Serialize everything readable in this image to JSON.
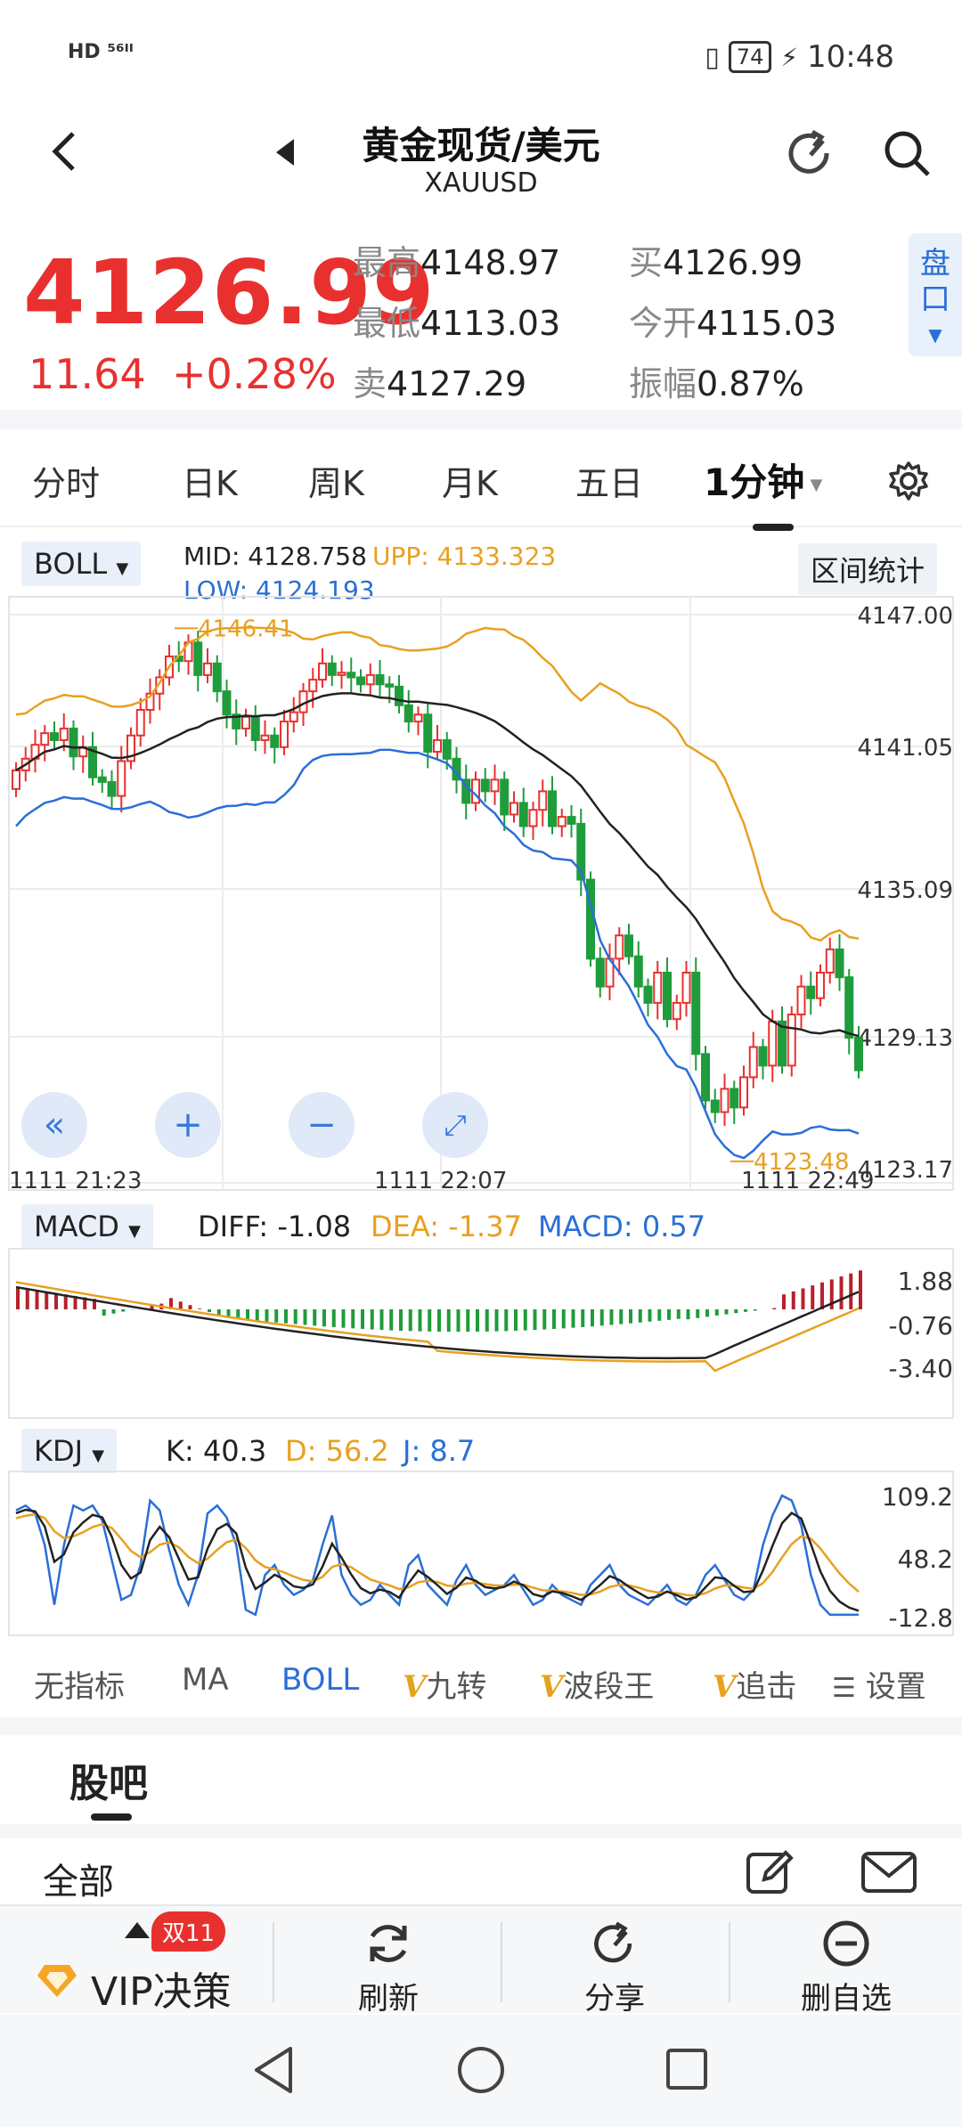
{
  "status_bar": {
    "left": "HD ⁵⁶ᴵᴵ",
    "battery": "74",
    "time": "10:48"
  },
  "header": {
    "title": "黄金现货/美元",
    "subtitle": "XAUUSD"
  },
  "quote": {
    "price": "4126.99",
    "change": "11.64",
    "change_pct": "+0.28%",
    "high_label": "最高",
    "high": "4148.97",
    "low_label": "最低",
    "low": "4113.03",
    "sell_label": "卖",
    "sell": "4127.29",
    "buy_label": "买",
    "buy": "4126.99",
    "open_label": "今开",
    "open": "4115.03",
    "amp_label": "振幅",
    "amp": "0.87%",
    "pankou": "盘口"
  },
  "tabs": [
    {
      "label": "分时"
    },
    {
      "label": "日K"
    },
    {
      "label": "周K"
    },
    {
      "label": "月K"
    },
    {
      "label": "五日"
    },
    {
      "label": "1分钟"
    }
  ],
  "main_chart": {
    "indicator": "BOLL",
    "mid": "MID: 4128.758",
    "upp": "UPP: 4133.323",
    "low": "LOW: 4124.193",
    "range_stats": "区间统计",
    "y_ticks": [
      "4147.00",
      "4141.05",
      "4135.09",
      "4129.13",
      "4123.17"
    ],
    "x_ticks": [
      "1111  21:23",
      "1111  22:07",
      "1111  22:49"
    ],
    "high_mark": "4146.41",
    "low_mark": "4123.48",
    "colors": {
      "up": "#e8312f",
      "down": "#1f9c3c",
      "mid": "#222222",
      "upp": "#e8a020",
      "low": "#2a6fd6"
    }
  },
  "macd": {
    "indicator": "MACD",
    "diff": "DIFF: -1.08",
    "dea": "DEA: -1.37",
    "macd": "MACD: 0.57",
    "y_ticks": [
      "1.88",
      "-0.76",
      "-3.40"
    ]
  },
  "kdj": {
    "indicator": "KDJ",
    "k": "K: 40.3",
    "d": "D: 56.2",
    "j": "J: 8.7",
    "y_ticks": [
      "109.2",
      "48.2",
      "-12.8"
    ]
  },
  "indicator_tabs": {
    "none": "无指标",
    "ma": "MA",
    "boll": "BOLL",
    "jiuzhuan": "九转",
    "boduanwang": "波段王",
    "zhuiji": "追击",
    "settings": "设置"
  },
  "guba": {
    "title": "股吧",
    "all": "全部"
  },
  "bottom_bar": {
    "vip": "VIP决策",
    "badge": "双11",
    "refresh": "刷新",
    "share": "分享",
    "remove": "删自选"
  }
}
